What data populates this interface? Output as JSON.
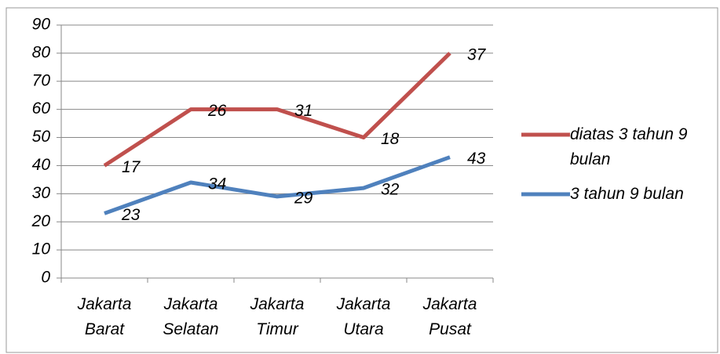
{
  "chart_data": {
    "type": "line",
    "stacked": true,
    "categories": [
      "Jakarta Barat",
      "Jakarta Selatan",
      "Jakarta Timur",
      "Jakarta Utara",
      "Jakarta Pusat"
    ],
    "series": [
      {
        "name": "3 tahun 9 bulan",
        "color": "#4f81bd",
        "values": [
          23,
          34,
          29,
          32,
          43
        ]
      },
      {
        "name": "diatas 3 tahun 9 bulan",
        "color": "#c0504d",
        "values": [
          17,
          26,
          31,
          18,
          37
        ]
      }
    ],
    "ylim": [
      0,
      90
    ],
    "yticks": [
      0,
      10,
      20,
      30,
      40,
      50,
      60,
      70,
      80,
      90
    ],
    "grid": true,
    "legend": "right"
  }
}
